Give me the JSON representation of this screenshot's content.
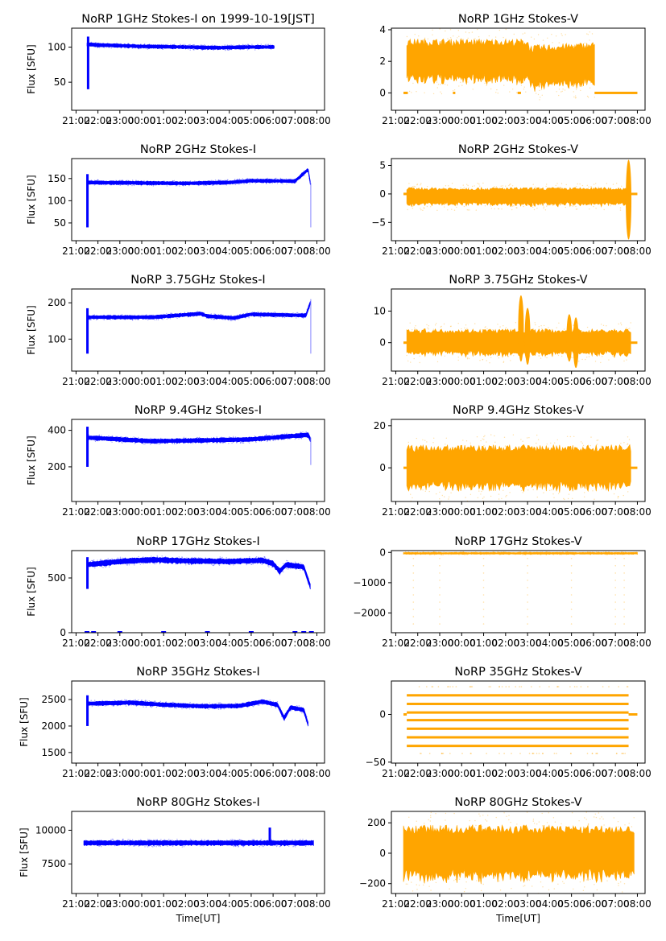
{
  "chart_data": {
    "type": "scatter",
    "layout": "7 rows x 2 columns",
    "x_ticks": [
      "21:00",
      "22:00",
      "23:00",
      "00:00",
      "01:00",
      "02:00",
      "03:00",
      "04:00",
      "05:00",
      "06:00",
      "07:00",
      "08:00"
    ],
    "xlim_hours": [
      20.8,
      32.35
    ],
    "x_unit_note": "hours since 00:00 of first day; 24 = 00:00 next day",
    "xlabel_bottom": "Time[UT]",
    "ylabel_left": "Flux [SFU]",
    "colors": {
      "stokes_i": "#0000ff",
      "stokes_v": "#ffa500",
      "axis": "#000000"
    },
    "panels": [
      {
        "id": "1ghz-i",
        "title": "NoRP 1GHz Stokes-I on 1999-10-19[JST]",
        "col": 0,
        "ylim": [
          10,
          127
        ],
        "yticks": [
          50,
          100
        ],
        "series": {
          "start": 21.5,
          "end": 30.05,
          "base": [
            [
              21.5,
              104
            ],
            [
              22,
              103
            ],
            [
              24,
              101
            ],
            [
              26,
              100
            ],
            [
              27.5,
              99
            ],
            [
              29,
              100
            ],
            [
              30,
              100
            ]
          ],
          "half_width": 2.5,
          "spike": {
            "x": 21.55,
            "ymin": 40,
            "ymax": 115
          }
        }
      },
      {
        "id": "1ghz-v",
        "title": "NoRP 1GHz Stokes-V",
        "col": 1,
        "ylim": [
          -1.1,
          4.1
        ],
        "yticks": [
          0,
          2,
          4
        ],
        "series": {
          "start": 21.5,
          "end": 30.05,
          "base": [
            [
              21.5,
              2
            ],
            [
              27,
              2
            ],
            [
              27.1,
              1.6
            ],
            [
              30,
              1.8
            ]
          ],
          "half_width": 1.3,
          "zero_segments": [
            [
              21.35,
              21.55
            ],
            [
              23.6,
              23.7
            ],
            [
              26.55,
              26.7
            ],
            [
              30.05,
              32.0
            ]
          ]
        }
      },
      {
        "id": "2ghz-i",
        "title": "NoRP 2GHz Stokes-I",
        "col": 0,
        "ylim": [
          10,
          195
        ],
        "yticks": [
          50,
          100,
          150
        ],
        "series": {
          "start": 21.5,
          "end": 31.7,
          "base": [
            [
              21.5,
              141
            ],
            [
              26,
              139
            ],
            [
              28,
              141
            ],
            [
              29,
              145
            ],
            [
              31,
              144
            ],
            [
              31.6,
              170
            ],
            [
              31.7,
              140
            ]
          ],
          "half_width": 4,
          "spike": {
            "x": 21.52,
            "ymin": 40,
            "ymax": 160
          },
          "tail": {
            "x": 31.72,
            "ymin": 40,
            "ymax": 140
          }
        }
      },
      {
        "id": "2ghz-v",
        "title": "NoRP 2GHz Stokes-V",
        "col": 1,
        "ylim": [
          -8.2,
          6.2
        ],
        "yticks": [
          -5,
          0,
          5
        ],
        "series": {
          "start": 21.5,
          "end": 31.6,
          "base": [
            [
              21.5,
              -0.5
            ],
            [
              31.5,
              -0.5
            ]
          ],
          "half_width": 1.5,
          "zero_segments": [
            [
              21.35,
              21.5
            ],
            [
              31.7,
              32.0
            ]
          ],
          "burst": {
            "x": 31.6,
            "ymin": -8,
            "ymax": 6
          }
        }
      },
      {
        "id": "3.75ghz-i",
        "title": "NoRP 3.75GHz Stokes-I",
        "col": 0,
        "ylim": [
          12,
          238
        ],
        "yticks": [
          100,
          200
        ],
        "series": {
          "start": 21.5,
          "end": 31.7,
          "base": [
            [
              21.5,
              160
            ],
            [
              24.5,
              160
            ],
            [
              26.7,
              170
            ],
            [
              27,
              163
            ],
            [
              28.2,
              158
            ],
            [
              29,
              168
            ],
            [
              31.5,
              165
            ],
            [
              31.7,
              200
            ]
          ],
          "half_width": 5,
          "spike": {
            "x": 21.52,
            "ymin": 60,
            "ymax": 185
          },
          "tail": {
            "x": 31.72,
            "ymin": 60,
            "ymax": 210
          }
        }
      },
      {
        "id": "3.75ghz-v",
        "title": "NoRP 3.75GHz Stokes-V",
        "col": 1,
        "ylim": [
          -9,
          17
        ],
        "yticks": [
          0,
          10
        ],
        "series": {
          "start": 21.5,
          "end": 31.7,
          "base": [
            [
              21.5,
              0
            ],
            [
              31.7,
              0
            ]
          ],
          "half_width": 4,
          "zero_segments": [
            [
              21.35,
              21.5
            ],
            [
              31.7,
              32.0
            ]
          ],
          "bursts": [
            {
              "x": 26.7,
              "ymin": -6,
              "ymax": 15
            },
            {
              "x": 27.0,
              "ymin": -7,
              "ymax": 11
            },
            {
              "x": 28.9,
              "ymin": -6,
              "ymax": 9
            },
            {
              "x": 29.2,
              "ymin": -8,
              "ymax": 8
            }
          ]
        }
      },
      {
        "id": "9.4ghz-i",
        "title": "NoRP 9.4GHz Stokes-I",
        "col": 0,
        "ylim": [
          10,
          460
        ],
        "yticks": [
          200,
          400
        ],
        "series": {
          "start": 21.5,
          "end": 31.7,
          "base": [
            [
              21.5,
              360
            ],
            [
              24.5,
              340
            ],
            [
              27,
              345
            ],
            [
              29,
              350
            ],
            [
              30.5,
              365
            ],
            [
              31.6,
              375
            ],
            [
              31.7,
              350
            ]
          ],
          "half_width": 12,
          "spike": {
            "x": 21.52,
            "ymin": 200,
            "ymax": 420
          },
          "tail": {
            "x": 31.72,
            "ymin": 210,
            "ymax": 360
          }
        }
      },
      {
        "id": "9.4ghz-v",
        "title": "NoRP 9.4GHz Stokes-V",
        "col": 1,
        "ylim": [
          -16,
          23
        ],
        "yticks": [
          0,
          20
        ],
        "series": {
          "start": 21.5,
          "end": 31.7,
          "base": [
            [
              21.5,
              0
            ],
            [
              31.7,
              0
            ]
          ],
          "half_width": 10,
          "zero_segments": [
            [
              21.35,
              21.5
            ],
            [
              31.7,
              32.0
            ]
          ]
        }
      },
      {
        "id": "17ghz-i",
        "title": "NoRP 17GHz Stokes-I",
        "col": 0,
        "ylim": [
          0,
          750
        ],
        "yticks": [
          0,
          500
        ],
        "series": {
          "start": 21.5,
          "end": 31.7,
          "base": [
            [
              21.5,
              620
            ],
            [
              23,
              650
            ],
            [
              24.5,
              665
            ],
            [
              26,
              655
            ],
            [
              28,
              650
            ],
            [
              29.5,
              660
            ],
            [
              30,
              630
            ],
            [
              30.3,
              560
            ],
            [
              30.6,
              620
            ],
            [
              31.4,
              600
            ],
            [
              31.7,
              420
            ]
          ],
          "half_width": 25,
          "spike": {
            "x": 21.52,
            "ymin": 400,
            "ymax": 690
          }
        }
      },
      {
        "id": "17ghz-v",
        "title": "NoRP 17GHz Stokes-V",
        "col": 1,
        "ylim": [
          -2650,
          60
        ],
        "yticks": [
          -2000,
          -1000,
          0
        ],
        "series": {
          "start": 21.35,
          "end": 32.0,
          "base": [
            [
              21.35,
              -30
            ],
            [
              32.0,
              -30
            ]
          ],
          "half_width": 30,
          "dropouts": [
            21.8,
            23.0,
            25.0,
            27.0,
            29.0,
            31.0,
            31.4
          ]
        }
      },
      {
        "id": "35ghz-i",
        "title": "NoRP 35GHz Stokes-I",
        "col": 0,
        "ylim": [
          1300,
          2850
        ],
        "yticks": [
          1500,
          2000,
          2500
        ],
        "series": {
          "start": 21.5,
          "end": 31.6,
          "base": [
            [
              21.5,
              2420
            ],
            [
              23.5,
              2440
            ],
            [
              25,
              2400
            ],
            [
              27,
              2370
            ],
            [
              28.5,
              2380
            ],
            [
              29.5,
              2460
            ],
            [
              30.2,
              2400
            ],
            [
              30.5,
              2150
            ],
            [
              30.8,
              2350
            ],
            [
              31.4,
              2300
            ],
            [
              31.6,
              2030
            ]
          ],
          "half_width": 40,
          "spike": {
            "x": 21.52,
            "ymin": 2000,
            "ymax": 2580
          }
        }
      },
      {
        "id": "35ghz-v",
        "title": "NoRP 35GHz Stokes-V",
        "col": 1,
        "ylim": [
          -51,
          35
        ],
        "yticks": [
          -50,
          0
        ],
        "series": {
          "start": 21.5,
          "end": 31.6,
          "levels": [
            20,
            11,
            2,
            -6,
            -15,
            -24,
            -33
          ],
          "sparse_levels": [
            29,
            -41
          ],
          "zero_segments": [
            [
              21.35,
              21.5
            ],
            [
              31.6,
              32.0
            ]
          ]
        }
      },
      {
        "id": "80ghz-i",
        "title": "NoRP 80GHz Stokes-I",
        "col": 0,
        "ylim": [
          5300,
          11400
        ],
        "yticks": [
          7500,
          10000
        ],
        "series": {
          "start": 21.35,
          "end": 31.85,
          "base": [
            [
              21.35,
              9050
            ],
            [
              31.85,
              9050
            ]
          ],
          "half_width": 180,
          "spike": {
            "x": 29.85,
            "ymin": 9050,
            "ymax": 10200
          }
        }
      },
      {
        "id": "80ghz-v",
        "title": "NoRP 80GHz Stokes-V",
        "col": 1,
        "ylim": [
          -265,
          275
        ],
        "yticks": [
          -200,
          0,
          200
        ],
        "series": {
          "start": 21.35,
          "end": 31.85,
          "base": [
            [
              21.35,
              0
            ],
            [
              31.85,
              0
            ]
          ],
          "half_width": 170
        }
      }
    ]
  }
}
